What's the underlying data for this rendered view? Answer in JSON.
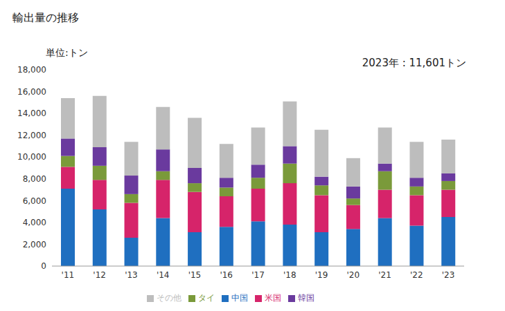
{
  "chart_data": {
    "type": "bar",
    "stacked": true,
    "title": "輸出量の推移",
    "y_label": "単位:トン",
    "annotations": [
      "2023年 : 11,601トン"
    ],
    "categories": [
      "'11",
      "'12",
      "'13",
      "'14",
      "'15",
      "'16",
      "'17",
      "'18",
      "'19",
      "'20",
      "'21",
      "'22",
      "'23"
    ],
    "series": [
      {
        "name": "中国",
        "color": "#1f6fc0",
        "values": [
          7100,
          5200,
          2600,
          4400,
          3100,
          3600,
          4100,
          3800,
          3100,
          3400,
          4400,
          3700,
          4500
        ]
      },
      {
        "name": "米国",
        "color": "#d6246a",
        "values": [
          2000,
          2700,
          3200,
          3500,
          3700,
          2800,
          3000,
          3800,
          3400,
          2200,
          2600,
          2800,
          2500
        ]
      },
      {
        "name": "タイ",
        "color": "#7a9a3a",
        "values": [
          1000,
          1300,
          800,
          800,
          800,
          800,
          1000,
          1800,
          900,
          600,
          1700,
          800,
          800
        ]
      },
      {
        "name": "韓国",
        "color": "#6a3a9e",
        "values": [
          1600,
          1700,
          1700,
          2000,
          1400,
          900,
          1200,
          1600,
          800,
          1100,
          700,
          800,
          700
        ]
      },
      {
        "name": "その他",
        "color": "#bdbdbd",
        "values": [
          3700,
          4700,
          3100,
          3900,
          4600,
          3100,
          3400,
          4100,
          4300,
          2600,
          3300,
          3300,
          3101
        ]
      }
    ],
    "ylim": [
      0,
      18000
    ],
    "yticks": [
      0,
      {
        "value": 2000,
        "label": "2,000"
      },
      {
        "value": 4000,
        "label": "4,000"
      },
      {
        "value": 6000,
        "label": "6,000"
      },
      {
        "value": 8000,
        "label": "8,000"
      },
      {
        "value": 10000,
        "label": "10,000"
      },
      {
        "value": 12000,
        "label": "12,000"
      },
      {
        "value": 14000,
        "label": "14,000"
      },
      {
        "value": 16000,
        "label": "16,000"
      },
      {
        "value": 18000,
        "label": "18,000"
      }
    ],
    "grid": false,
    "legend": "bottom"
  }
}
